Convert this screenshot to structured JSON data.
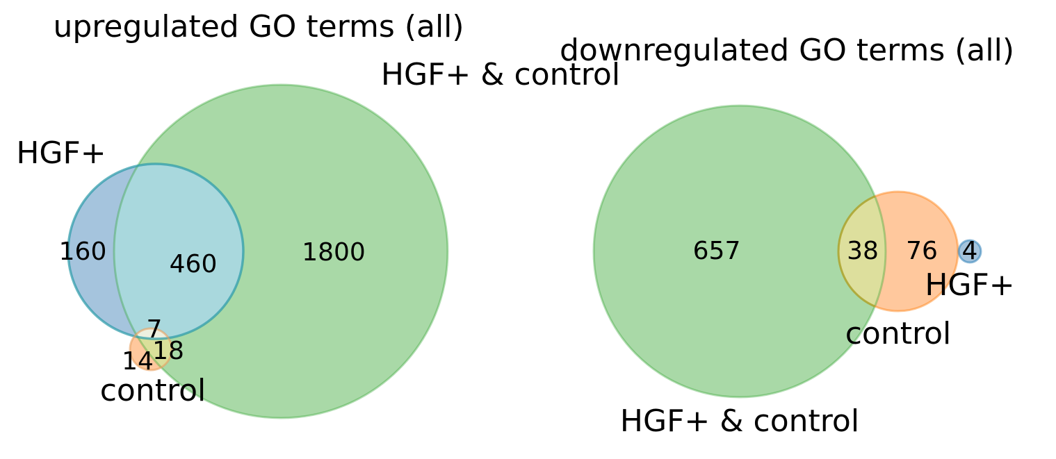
{
  "colors": {
    "set_hgf": "#1f77b4",
    "set_control": "#ff7f0e",
    "set_both": "#2ca02c"
  },
  "chart_data": [
    {
      "type": "venn",
      "title": "upregulated GO terms (all)",
      "sets": [
        {
          "key": "hgf",
          "label": "HGF+"
        },
        {
          "key": "control",
          "label": "control"
        },
        {
          "key": "both",
          "label": "HGF+ & control"
        }
      ],
      "regions": [
        {
          "sets": [
            "HGF+"
          ],
          "value": "160"
        },
        {
          "sets": [
            "HGF+",
            "HGF+ & control"
          ],
          "value": "460"
        },
        {
          "sets": [
            "HGF+ & control"
          ],
          "value": "1800"
        },
        {
          "sets": [
            "HGF+",
            "control",
            "HGF+ & control"
          ],
          "value": "7"
        },
        {
          "sets": [
            "control",
            "HGF+ & control"
          ],
          "value": "18"
        },
        {
          "sets": [
            "control"
          ],
          "value": "14"
        }
      ]
    },
    {
      "type": "venn",
      "title": "downregulated GO terms (all)",
      "sets": [
        {
          "key": "both",
          "label": "HGF+ & control"
        },
        {
          "key": "control",
          "label": "control"
        },
        {
          "key": "hgf",
          "label": "HGF+"
        }
      ],
      "regions": [
        {
          "sets": [
            "HGF+ & control"
          ],
          "value": "657"
        },
        {
          "sets": [
            "control",
            "HGF+ & control"
          ],
          "value": "38"
        },
        {
          "sets": [
            "control"
          ],
          "value": "76"
        },
        {
          "sets": [
            "HGF+"
          ],
          "value": "4"
        }
      ]
    }
  ]
}
